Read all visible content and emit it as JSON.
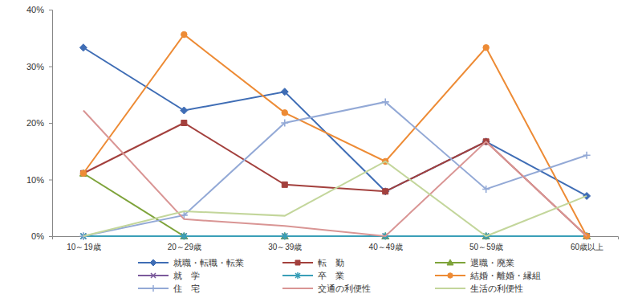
{
  "chart_data": {
    "type": "line",
    "categories": [
      "10～19歳",
      "20～29歳",
      "30～39歳",
      "40～49歳",
      "50～59歳",
      "60歳以上"
    ],
    "ylim": [
      0,
      40
    ],
    "yticks": [
      {
        "value": 0,
        "label": "0%"
      },
      {
        "value": 10,
        "label": "10%"
      },
      {
        "value": 20,
        "label": "20%"
      },
      {
        "value": 30,
        "label": "30%"
      },
      {
        "value": 40,
        "label": "40%"
      }
    ],
    "grid": false,
    "legend": "bottom",
    "series": [
      {
        "name": "就職・転職・転業",
        "color": "#3f6db5",
        "marker": "diamond",
        "values": [
          33.3,
          22.2,
          25.5,
          7.9,
          16.7,
          7.1
        ]
      },
      {
        "name": "転　勤",
        "color": "#a3403d",
        "marker": "square",
        "values": [
          11.1,
          20.0,
          9.1,
          7.9,
          16.7,
          0
        ]
      },
      {
        "name": "退職・廃業",
        "color": "#7ea33a",
        "marker": "triangle",
        "values": [
          11.1,
          0,
          0,
          0,
          0,
          0
        ]
      },
      {
        "name": "就　学",
        "color": "#7b5a9b",
        "marker": "x",
        "values": [
          0,
          0,
          0,
          0,
          0,
          0
        ]
      },
      {
        "name": "卒　業",
        "color": "#3a9fb8",
        "marker": "star",
        "values": [
          0,
          0,
          0,
          0,
          0,
          0
        ]
      },
      {
        "name": "結婚・離婚・縁組",
        "color": "#ed8b35",
        "marker": "circle",
        "values": [
          11.1,
          35.6,
          21.8,
          13.2,
          33.3,
          0
        ]
      },
      {
        "name": "住　宅",
        "color": "#93a9d6",
        "marker": "plus",
        "values": [
          0,
          3.7,
          20.0,
          23.7,
          8.3,
          14.3
        ]
      },
      {
        "name": "交通の利便性",
        "color": "#d99594",
        "marker": "none",
        "values": [
          22.2,
          3.0,
          1.8,
          0,
          16.7,
          0
        ]
      },
      {
        "name": "生活の利便性",
        "color": "#c3d69b",
        "marker": "none",
        "values": [
          0,
          4.4,
          3.6,
          13.2,
          0,
          7.1
        ]
      }
    ]
  }
}
